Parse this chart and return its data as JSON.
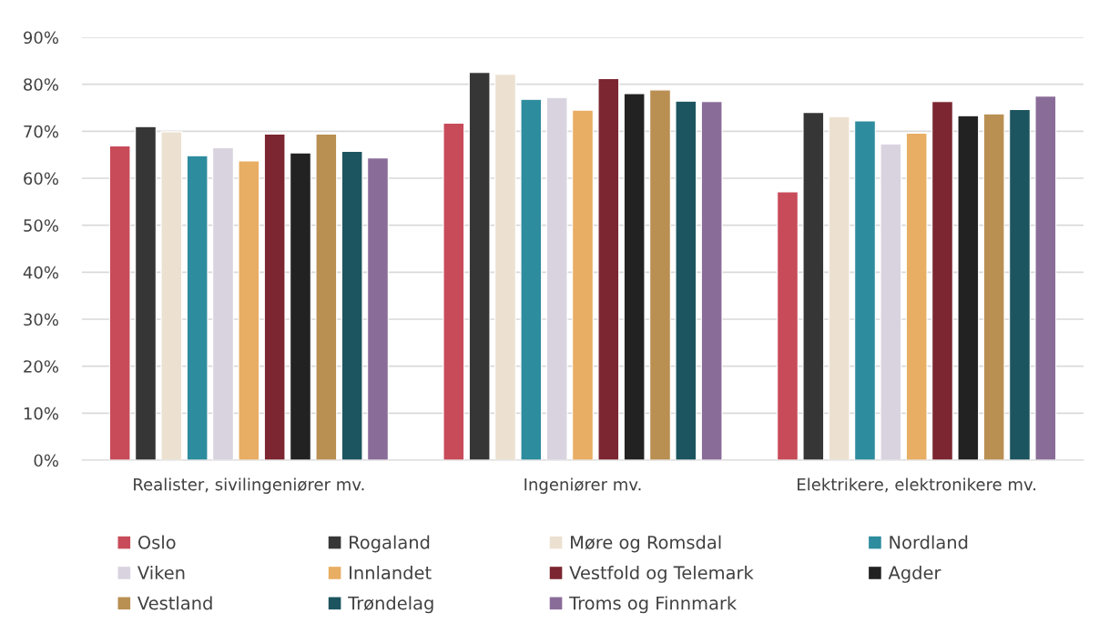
{
  "chart_data": {
    "type": "bar",
    "categories": [
      "Realister, sivilingeniører mv.",
      "Ingeniører mv.",
      "Elektrikere, elektronikere mv."
    ],
    "series": [
      {
        "name": "Oslo",
        "color": "#c84b5a",
        "values": [
          66.9,
          71.7,
          57.1
        ]
      },
      {
        "name": "Rogaland",
        "color": "#363636",
        "values": [
          71.0,
          82.5,
          74.0
        ]
      },
      {
        "name": "Møre og Romsdal",
        "color": "#ece1d1",
        "values": [
          69.9,
          82.1,
          73.1
        ]
      },
      {
        "name": "Nordland",
        "color": "#2d8c9e",
        "values": [
          64.8,
          76.8,
          72.2
        ]
      },
      {
        "name": "Viken",
        "color": "#d9d3e0",
        "values": [
          66.5,
          77.2,
          67.3
        ]
      },
      {
        "name": "Innlandet",
        "color": "#e8ae63",
        "values": [
          63.7,
          74.5,
          69.6
        ]
      },
      {
        "name": "Vestfold og Telemark",
        "color": "#7b2630",
        "values": [
          69.4,
          81.2,
          76.3
        ]
      },
      {
        "name": "Agder",
        "color": "#222222",
        "values": [
          65.4,
          78.0,
          73.3
        ]
      },
      {
        "name": "Vestland",
        "color": "#b98f52",
        "values": [
          69.4,
          78.8,
          73.7
        ]
      },
      {
        "name": "Trøndelag",
        "color": "#1c555f",
        "values": [
          65.7,
          76.4,
          74.6
        ]
      },
      {
        "name": "Troms og Finnmark",
        "color": "#8a6c99",
        "values": [
          64.3,
          76.3,
          77.5
        ]
      }
    ],
    "ylim": [
      0,
      90
    ],
    "yticks": [
      {
        "value": 0,
        "label": "0%"
      },
      {
        "value": 10,
        "label": "10%"
      },
      {
        "value": 20,
        "label": "20%"
      },
      {
        "value": 30,
        "label": "30%"
      },
      {
        "value": 40,
        "label": "40%"
      },
      {
        "value": 50,
        "label": "50%"
      },
      {
        "value": 60,
        "label": "60%"
      },
      {
        "value": 70,
        "label": "70%"
      },
      {
        "value": 80,
        "label": "80%"
      },
      {
        "value": 90,
        "label": "90%"
      }
    ],
    "grid": "y",
    "legend": "bottom"
  }
}
